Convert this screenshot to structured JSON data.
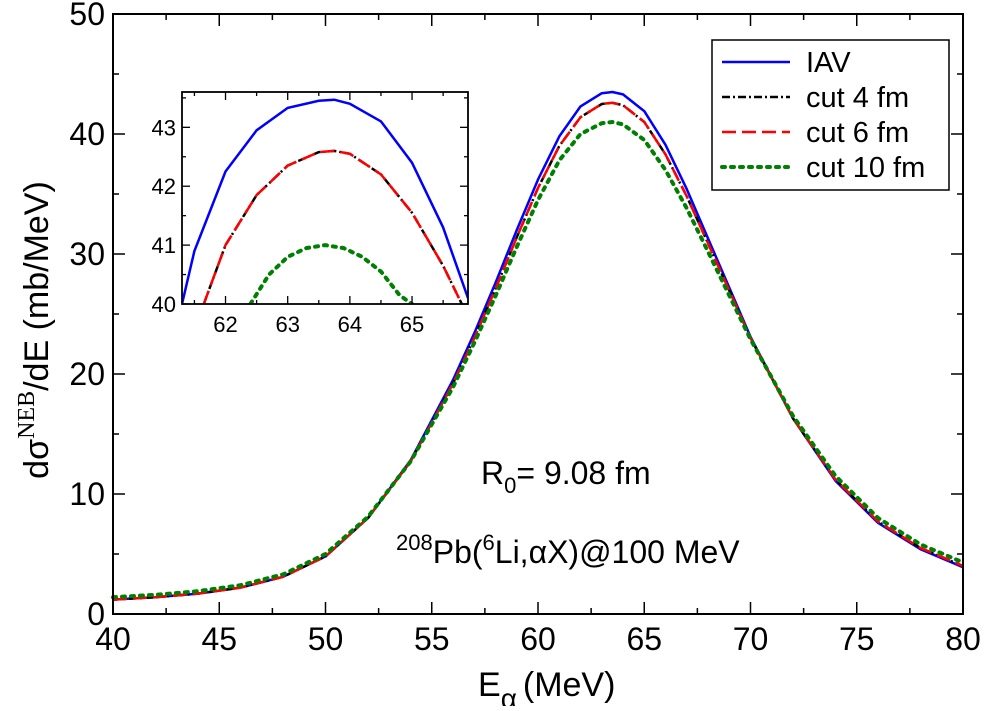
{
  "chart_data": [
    {
      "type": "line",
      "role": "main",
      "xlabel": "E",
      "xlabel_sub": "α",
      "xlabel_unit": "(MeV)",
      "ylabel_prefix": "dσ",
      "ylabel_sup": "NEB",
      "ylabel_suffix": "/dE (mb/MeV)",
      "xlim": [
        40,
        80
      ],
      "ylim": [
        0,
        50
      ],
      "xticks": [
        "40",
        "45",
        "50",
        "55",
        "60",
        "65",
        "70",
        "75",
        "80"
      ],
      "yticks": [
        "0",
        "10",
        "20",
        "30",
        "40",
        "50"
      ],
      "legend_position": "top-right",
      "series": [
        {
          "name": "IAV",
          "color": "#0000ff",
          "dash": "solid",
          "x": [
            40,
            42,
            44,
            46,
            48,
            50,
            52,
            54,
            56,
            57,
            58,
            59,
            60,
            61,
            62,
            63,
            63.5,
            64,
            65,
            66,
            67,
            68,
            70,
            72,
            74,
            76,
            78,
            80
          ],
          "y": [
            1.2,
            1.4,
            1.7,
            2.2,
            3.1,
            4.8,
            8.0,
            12.8,
            19.5,
            23.4,
            27.6,
            32.0,
            36.2,
            39.8,
            42.3,
            43.4,
            43.5,
            43.3,
            41.9,
            39.1,
            35.4,
            31.3,
            23.1,
            16.3,
            11.1,
            7.6,
            5.4,
            3.9
          ]
        },
        {
          "name": "cut 4 fm",
          "color": "#000000",
          "dash": "dashdot",
          "x": [
            40,
            42,
            44,
            46,
            48,
            50,
            52,
            54,
            56,
            57,
            58,
            59,
            60,
            61,
            62,
            63,
            63.5,
            64,
            65,
            66,
            67,
            68,
            70,
            72,
            74,
            76,
            78,
            80
          ],
          "y": [
            1.2,
            1.4,
            1.7,
            2.2,
            3.1,
            4.8,
            8.0,
            12.7,
            19.2,
            23.0,
            27.1,
            31.4,
            35.5,
            39.0,
            41.4,
            42.5,
            42.6,
            42.4,
            41.0,
            38.3,
            34.8,
            30.9,
            23.0,
            16.3,
            11.2,
            7.7,
            5.5,
            4.0
          ]
        },
        {
          "name": "cut 6 fm",
          "color": "#ff0000",
          "dash": "dashed",
          "x": [
            40,
            42,
            44,
            46,
            48,
            50,
            52,
            54,
            56,
            57,
            58,
            59,
            60,
            61,
            62,
            63,
            63.5,
            64,
            65,
            66,
            67,
            68,
            70,
            72,
            74,
            76,
            78,
            80
          ],
          "y": [
            1.2,
            1.4,
            1.7,
            2.2,
            3.1,
            4.8,
            8.0,
            12.7,
            19.2,
            23.0,
            27.1,
            31.4,
            35.5,
            39.0,
            41.4,
            42.5,
            42.6,
            42.4,
            41.0,
            38.3,
            34.8,
            30.9,
            23.0,
            16.3,
            11.2,
            7.7,
            5.5,
            4.0
          ]
        },
        {
          "name": "cut 10 fm",
          "color": "#008000",
          "dash": "dotted",
          "x": [
            40,
            42,
            44,
            46,
            48,
            50,
            52,
            54,
            56,
            57,
            58,
            59,
            60,
            61,
            62,
            63,
            63.5,
            64,
            65,
            66,
            67,
            68,
            70,
            72,
            74,
            76,
            78,
            80
          ],
          "y": [
            1.4,
            1.6,
            1.9,
            2.4,
            3.3,
            5.0,
            8.1,
            12.7,
            18.9,
            22.6,
            26.5,
            30.6,
            34.5,
            37.8,
            40.0,
            40.9,
            41.0,
            40.8,
            39.5,
            37.0,
            33.8,
            30.2,
            22.9,
            16.5,
            11.5,
            8.0,
            5.8,
            4.3
          ]
        }
      ],
      "annotations": [
        {
          "id": "radius",
          "prefix": "R",
          "sub": "0",
          "suffix": "= 9.08 fm"
        },
        {
          "id": "reaction",
          "sup1": "208",
          "mid1": "Pb(",
          "sup2": "6",
          "mid2": "Li,αX)@100 MeV"
        }
      ]
    },
    {
      "type": "line",
      "role": "inset",
      "xlim": [
        61.3,
        65.9
      ],
      "ylim": [
        40,
        43.6
      ],
      "xticks": [
        "62",
        "63",
        "64",
        "65"
      ],
      "yticks": [
        "40",
        "41",
        "42",
        "43"
      ],
      "series": [
        {
          "name": "IAV",
          "color": "#0000ff",
          "dash": "solid",
          "x": [
            61.3,
            61.5,
            62,
            62.5,
            63,
            63.5,
            63.75,
            64,
            64.5,
            65,
            65.5,
            65.9
          ],
          "y": [
            40.0,
            40.9,
            42.25,
            42.95,
            43.33,
            43.45,
            43.47,
            43.4,
            43.1,
            42.4,
            41.3,
            40.1
          ]
        },
        {
          "name": "cut 4 fm",
          "color": "#000000",
          "dash": "dashdot",
          "x": [
            61.65,
            62,
            62.5,
            63,
            63.5,
            63.75,
            64,
            64.5,
            65,
            65.5,
            65.8
          ],
          "y": [
            40.0,
            41.0,
            41.85,
            42.35,
            42.58,
            42.6,
            42.55,
            42.2,
            41.55,
            40.65,
            40.0
          ]
        },
        {
          "name": "cut 6 fm",
          "color": "#ff0000",
          "dash": "dashed",
          "x": [
            61.65,
            62,
            62.5,
            63,
            63.5,
            63.75,
            64,
            64.5,
            65,
            65.5,
            65.8
          ],
          "y": [
            40.0,
            41.0,
            41.85,
            42.35,
            42.58,
            42.6,
            42.55,
            42.2,
            41.55,
            40.65,
            40.0
          ]
        },
        {
          "name": "cut 10 fm",
          "color": "#008000",
          "dash": "dotted",
          "x": [
            62.4,
            62.7,
            63,
            63.3,
            63.6,
            63.9,
            64.2,
            64.5,
            64.8,
            65.0
          ],
          "y": [
            40.0,
            40.5,
            40.8,
            40.95,
            41.0,
            40.95,
            40.8,
            40.55,
            40.15,
            40.0
          ]
        }
      ]
    }
  ]
}
